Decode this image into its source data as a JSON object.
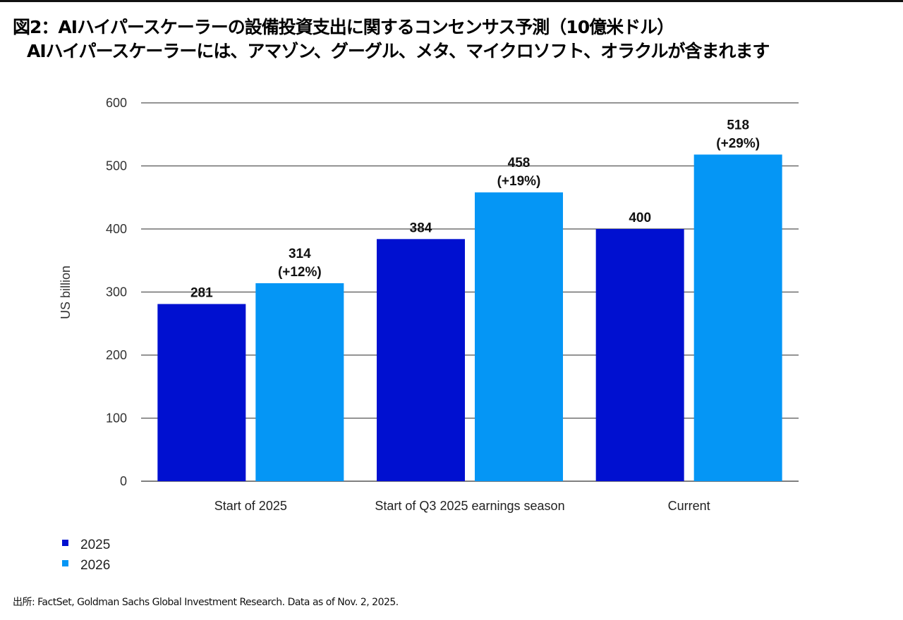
{
  "title_line1": "図2：AIハイパースケーラーの設備投資支出に関するコンセンサス予測（10億米ドル）",
  "title_line2": "AIハイパースケーラーには、アマゾン、グーグル、メタ、マイクロソフト、オラクルが含まれます",
  "source": "出所: FactSet, Goldman Sachs Global Investment Research. Data as of Nov. 2, 2025.",
  "chart_data": {
    "type": "bar",
    "categories": [
      "Start of 2025",
      "Start of Q3 2025 earnings season",
      "Current"
    ],
    "series": [
      {
        "name": "2025",
        "values": [
          281,
          384,
          400
        ],
        "labels": [
          "281",
          "384",
          "400"
        ],
        "color": "#0010d0"
      },
      {
        "name": "2026",
        "values": [
          314,
          458,
          518
        ],
        "labels": [
          "314\n(+12%)",
          "458\n(+19%)",
          "518\n(+29%)"
        ],
        "color": "#0596f5"
      }
    ],
    "ylabel": "US billion",
    "ylim": [
      0,
      600
    ],
    "yticks": [
      0,
      100,
      200,
      300,
      400,
      500,
      600
    ],
    "grid": true,
    "legend_position": "bottom-left"
  }
}
